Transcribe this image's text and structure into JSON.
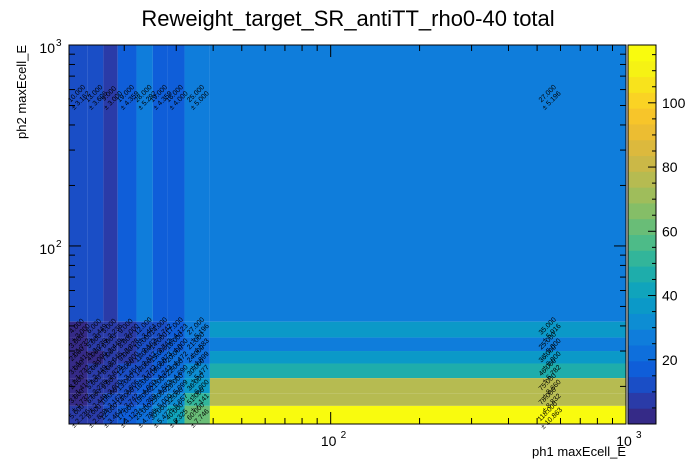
{
  "chart_data": {
    "type": "heatmap",
    "title": "Reweight_target_SR_antiTT_rho0-40 total",
    "xlabel": "ph1 maxEcell_E",
    "ylabel": "ph2 maxEcell_E",
    "x_scale": "log",
    "y_scale": "log",
    "xlim": [
      13,
      1000
    ],
    "ylim": [
      13,
      1000
    ],
    "x_edges": [
      13,
      15,
      17,
      19,
      22,
      25,
      28,
      32,
      39,
      1000
    ],
    "y_edges": [
      13,
      16,
      18.5,
      22,
      26,
      30,
      35,
      42,
      1000
    ],
    "x_ticks": [
      {
        "v": 100,
        "label": "10",
        "exp": "2"
      },
      {
        "v": 1000,
        "label": "10",
        "exp": "3"
      }
    ],
    "y_ticks": [
      {
        "v": 100,
        "label": "10",
        "exp": "2"
      },
      {
        "v": 1000,
        "label": "10",
        "exp": "3"
      }
    ],
    "zlim": [
      0,
      118
    ],
    "z_ticks": [
      20,
      40,
      60,
      80,
      100
    ],
    "palette_colors": [
      "#352a87",
      "#2a3ba8",
      "#1a4ec6",
      "#0f5ed9",
      "#0e6fdc",
      "#0f7ddb",
      "#0d8dd3",
      "#0b99c8",
      "#10a4bc",
      "#1eadab",
      "#32b59a",
      "#4dbb88",
      "#69bd77",
      "#85be67",
      "#9fbd5b",
      "#b6bb51",
      "#cbb847",
      "#dcb93d",
      "#ecbd32",
      "#f7c52a",
      "#fad324",
      "#f8e31c",
      "#f6f214",
      "#f9fb0e"
    ],
    "cells": [
      {
        "ix": 0,
        "iy": 7,
        "value": 10,
        "error": 3.162
      },
      {
        "ix": 1,
        "iy": 7,
        "value": 13,
        "error": 3.606
      },
      {
        "ix": 2,
        "iy": 7,
        "value": 9,
        "error": 3.0
      },
      {
        "ix": 3,
        "iy": 7,
        "value": 19,
        "error": 4.359
      },
      {
        "ix": 4,
        "iy": 7,
        "value": 28,
        "error": 5.292
      },
      {
        "ix": 5,
        "iy": 7,
        "value": 19,
        "error": 4.359
      },
      {
        "ix": 6,
        "iy": 7,
        "value": 16,
        "error": 4.0
      },
      {
        "ix": 7,
        "iy": 7,
        "value": 25,
        "error": 5.0
      },
      {
        "ix": 8,
        "iy": 7,
        "value": 27,
        "error": 5.196
      },
      {
        "ix": 0,
        "iy": 6,
        "value": 4,
        "error": 2.0
      },
      {
        "ix": 1,
        "iy": 6,
        "value": 6,
        "error": 2.449
      },
      {
        "ix": 2,
        "iy": 6,
        "value": 5,
        "error": 2.236
      },
      {
        "ix": 3,
        "iy": 6,
        "value": 9,
        "error": 3.0
      },
      {
        "ix": 4,
        "iy": 6,
        "value": 12,
        "error": 3.464
      },
      {
        "ix": 5,
        "iy": 6,
        "value": 14,
        "error": 3.742
      },
      {
        "ix": 6,
        "iy": 6,
        "value": 17,
        "error": 4.123
      },
      {
        "ix": 7,
        "iy": 6,
        "value": 27,
        "error": 5.196
      },
      {
        "ix": 8,
        "iy": 6,
        "value": 35,
        "error": 5.916
      },
      {
        "ix": 0,
        "iy": 5,
        "value": 3,
        "error": 1.732
      },
      {
        "ix": 1,
        "iy": 5,
        "value": 5,
        "error": 2.236
      },
      {
        "ix": 2,
        "iy": 5,
        "value": 6,
        "error": 2.449
      },
      {
        "ix": 3,
        "iy": 5,
        "value": 8,
        "error": 2.828
      },
      {
        "ix": 4,
        "iy": 5,
        "value": 10,
        "error": 3.162
      },
      {
        "ix": 5,
        "iy": 5,
        "value": 14,
        "error": 3.742
      },
      {
        "ix": 6,
        "iy": 5,
        "value": 16,
        "error": 4.0
      },
      {
        "ix": 7,
        "iy": 5,
        "value": 21,
        "error": 4.583
      },
      {
        "ix": 8,
        "iy": 5,
        "value": 25,
        "error": 5.0
      },
      {
        "ix": 0,
        "iy": 4,
        "value": 2,
        "error": 1.414
      },
      {
        "ix": 1,
        "iy": 4,
        "value": 4,
        "error": 2.0
      },
      {
        "ix": 2,
        "iy": 4,
        "value": 7,
        "error": 2.646
      },
      {
        "ix": 3,
        "iy": 4,
        "value": 9,
        "error": 3.0
      },
      {
        "ix": 4,
        "iy": 4,
        "value": 11,
        "error": 3.317
      },
      {
        "ix": 5,
        "iy": 4,
        "value": 15,
        "error": 3.873
      },
      {
        "ix": 6,
        "iy": 4,
        "value": 20,
        "error": 4.472
      },
      {
        "ix": 7,
        "iy": 4,
        "value": 24,
        "error": 4.899
      },
      {
        "ix": 8,
        "iy": 4,
        "value": 36,
        "error": 6.0
      },
      {
        "ix": 0,
        "iy": 3,
        "value": 3,
        "error": 1.732
      },
      {
        "ix": 1,
        "iy": 3,
        "value": 6,
        "error": 2.449
      },
      {
        "ix": 2,
        "iy": 3,
        "value": 8,
        "error": 2.828
      },
      {
        "ix": 3,
        "iy": 3,
        "value": 12,
        "error": 3.464
      },
      {
        "ix": 4,
        "iy": 3,
        "value": 14,
        "error": 3.742
      },
      {
        "ix": 5,
        "iy": 3,
        "value": 18,
        "error": 4.243
      },
      {
        "ix": 6,
        "iy": 3,
        "value": 22,
        "error": 4.69
      },
      {
        "ix": 7,
        "iy": 3,
        "value": 30,
        "error": 5.477
      },
      {
        "ix": 8,
        "iy": 3,
        "value": 46,
        "error": 6.782
      },
      {
        "ix": 0,
        "iy": 2,
        "value": 2,
        "error": 1.414
      },
      {
        "ix": 1,
        "iy": 2,
        "value": 5,
        "error": 2.236
      },
      {
        "ix": 2,
        "iy": 2,
        "value": 9,
        "error": 3.0
      },
      {
        "ix": 3,
        "iy": 2,
        "value": 13,
        "error": 3.606
      },
      {
        "ix": 4,
        "iy": 2,
        "value": 16,
        "error": 4.0
      },
      {
        "ix": 5,
        "iy": 2,
        "value": 21,
        "error": 4.583
      },
      {
        "ix": 6,
        "iy": 2,
        "value": 26,
        "error": 5.099
      },
      {
        "ix": 7,
        "iy": 2,
        "value": 36,
        "error": 6.0
      },
      {
        "ix": 8,
        "iy": 2,
        "value": 75,
        "error": 8.66
      },
      {
        "ix": 0,
        "iy": 1,
        "value": 3,
        "error": 1.732
      },
      {
        "ix": 1,
        "iy": 1,
        "value": 6,
        "error": 2.449
      },
      {
        "ix": 2,
        "iy": 1,
        "value": 10,
        "error": 3.162
      },
      {
        "ix": 3,
        "iy": 1,
        "value": 14,
        "error": 3.742
      },
      {
        "ix": 4,
        "iy": 1,
        "value": 19,
        "error": 4.359
      },
      {
        "ix": 5,
        "iy": 1,
        "value": 25,
        "error": 5.0
      },
      {
        "ix": 6,
        "iy": 1,
        "value": 32,
        "error": 5.657
      },
      {
        "ix": 7,
        "iy": 1,
        "value": 51,
        "error": 7.141
      },
      {
        "ix": 8,
        "iy": 1,
        "value": 78,
        "error": 8.832
      },
      {
        "ix": 0,
        "iy": 0,
        "value": 5,
        "error": 2.236
      },
      {
        "ix": 1,
        "iy": 0,
        "value": 8,
        "error": 2.828
      },
      {
        "ix": 2,
        "iy": 0,
        "value": 12,
        "error": 3.464
      },
      {
        "ix": 3,
        "iy": 0,
        "value": 17,
        "error": 4.123
      },
      {
        "ix": 4,
        "iy": 0,
        "value": 23,
        "error": 4.796
      },
      {
        "ix": 5,
        "iy": 0,
        "value": 30,
        "error": 5.477
      },
      {
        "ix": 6,
        "iy": 0,
        "value": 40,
        "error": 6.325
      },
      {
        "ix": 7,
        "iy": 0,
        "value": 60,
        "error": 7.746
      },
      {
        "ix": 8,
        "iy": 0,
        "value": 118,
        "error": 10.863
      }
    ]
  }
}
